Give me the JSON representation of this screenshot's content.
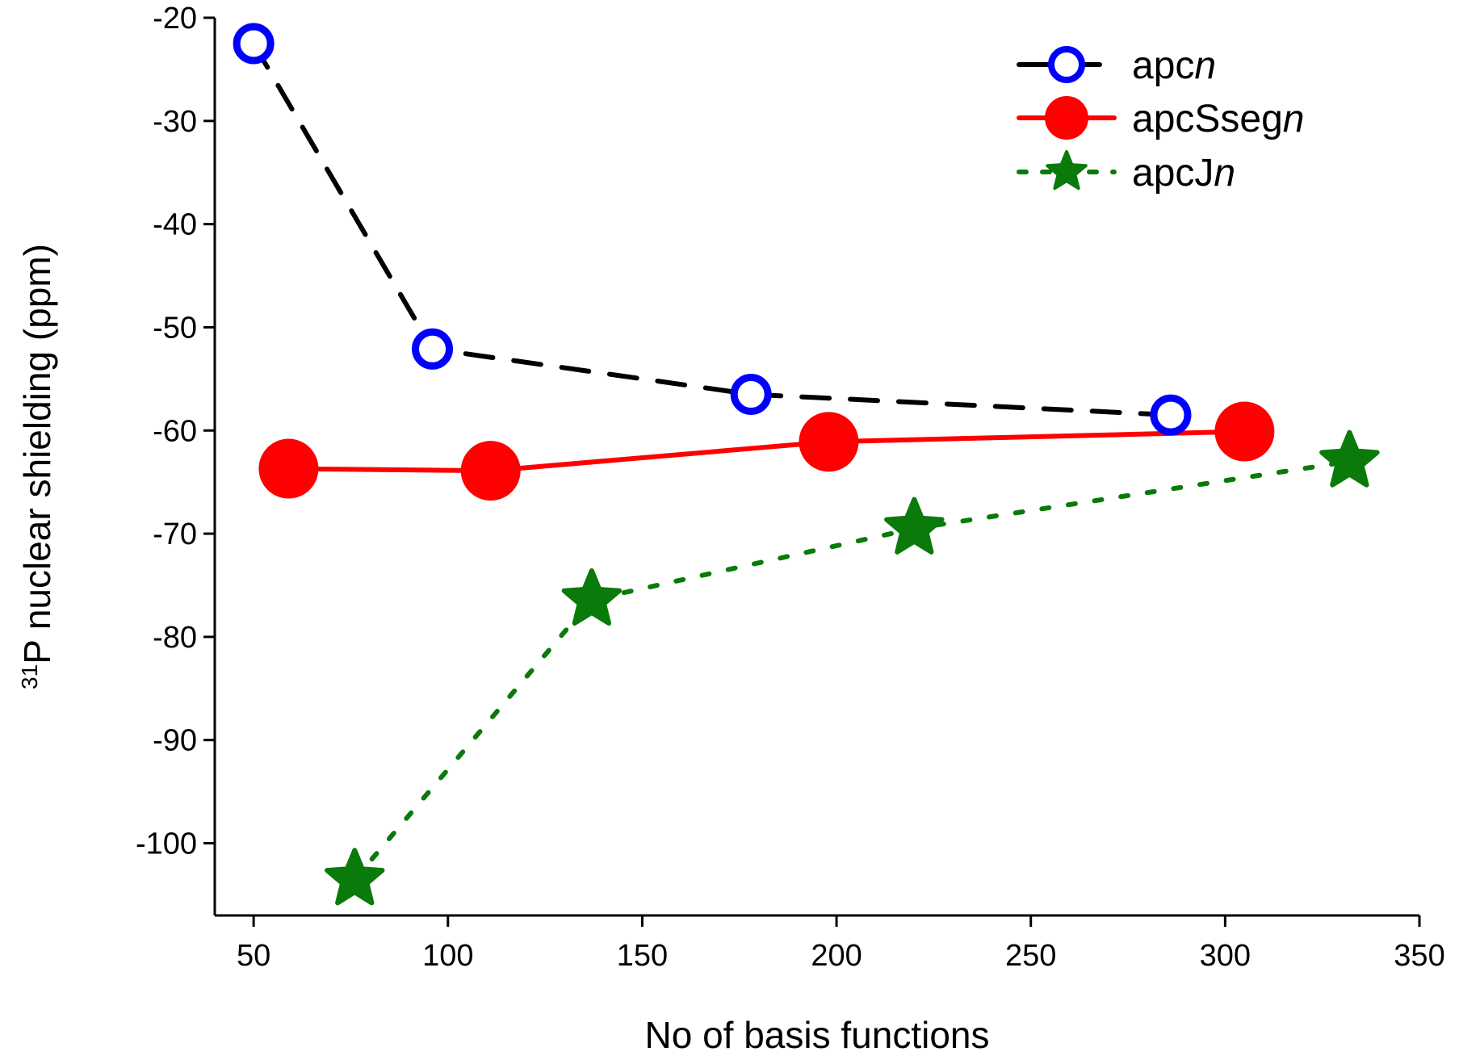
{
  "chart_data": {
    "type": "line",
    "xlabel": "No of basis functions",
    "ylabel": {
      "sup": "31",
      "text": "P nuclear shielding  (ppm)"
    },
    "xlim": [
      40,
      350
    ],
    "ylim": [
      -107,
      -20
    ],
    "xticks": [
      50,
      100,
      150,
      200,
      250,
      300,
      350
    ],
    "yticks": [
      -20,
      -30,
      -40,
      -50,
      -60,
      -70,
      -80,
      -90,
      -100
    ],
    "grid": false,
    "legend_position": "top-right",
    "series": [
      {
        "name": "apcn",
        "name_prefix": "apc",
        "name_italic": "n",
        "color": "#0000ff",
        "line_color": "#000000",
        "line_style": "dashed",
        "marker": "open-circle",
        "x": [
          50,
          96,
          178,
          286
        ],
        "y": [
          -22.5,
          -52.1,
          -56.5,
          -58.5
        ]
      },
      {
        "name": "apcSsegn",
        "name_prefix": "apcSseg",
        "name_italic": "n",
        "color": "#ff0000",
        "line_color": "#ff0000",
        "line_style": "solid",
        "marker": "filled-circle",
        "x": [
          59,
          111,
          198,
          305
        ],
        "y": [
          -63.7,
          -63.9,
          -61.1,
          -60.1
        ]
      },
      {
        "name": "apcJn",
        "name_prefix": "apcJ",
        "name_italic": "n",
        "color": "#0a7a0a",
        "line_color": "#0a7a0a",
        "line_style": "dotted",
        "marker": "star",
        "x": [
          76,
          137,
          220,
          332
        ],
        "y": [
          -103.5,
          -76.4,
          -69.5,
          -63.0
        ]
      }
    ]
  }
}
